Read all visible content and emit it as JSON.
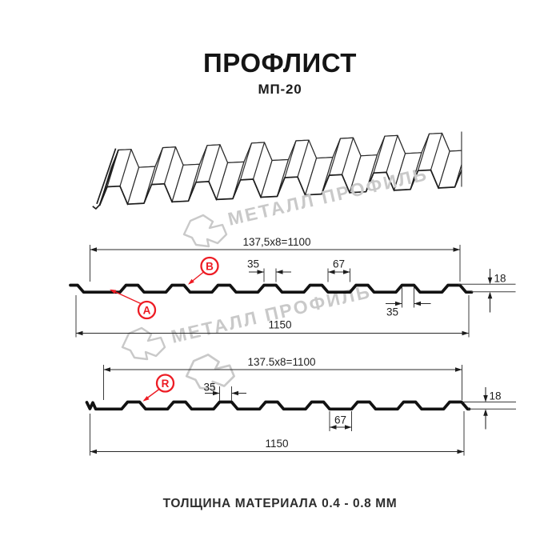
{
  "header": {
    "title": "ПРОФЛИСТ",
    "subtitle": "МП-20"
  },
  "watermark": {
    "text": "МЕТАЛЛ ПРОФИЛЬ"
  },
  "colors": {
    "accent_red": "#ed1c24",
    "watermark_gray": "#c9c9c9",
    "line_dark": "#1e1e1e"
  },
  "section1": {
    "marker_a": "A",
    "marker_b": "B",
    "dim_top_pitch": "137,5x8=1100",
    "dim_rib_top_width": "35",
    "dim_valley_width": "67",
    "dim_profile_height": "18",
    "dim_rib_bottom_width": "35",
    "dim_overall_width": "1150"
  },
  "section2": {
    "marker_r": "R",
    "dim_top_pitch": "137.5x8=1100",
    "dim_rib_top_width": "35",
    "dim_valley_width": "67",
    "dim_profile_height": "18",
    "dim_overall_width": "1150"
  },
  "footer": {
    "thickness_note": "ТОЛЩИНА МАТЕРИАЛА 0.4 - 0.8 ММ"
  }
}
